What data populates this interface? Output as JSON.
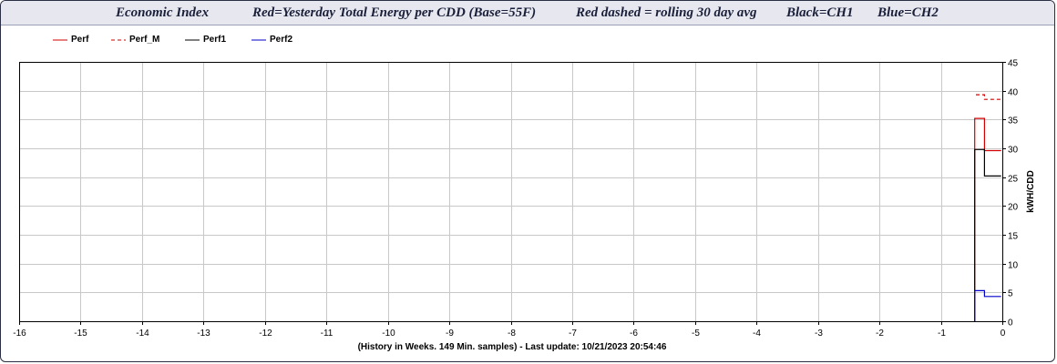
{
  "header": {
    "part1": "Economic Index",
    "part2": "Red=Yesterday Total Energy per CDD (Base=55F)",
    "part3": "Red dashed = rolling 30 day avg",
    "part4": "Black=CH1",
    "part5": "Blue=CH2"
  },
  "footer": "(History in Weeks. 149 Min. samples) - Last update: 10/21/2023 20:54:46",
  "chart_data": {
    "type": "line",
    "title": "",
    "xlabel": "(History in Weeks. 149 Min. samples) - Last update: 10/21/2023 20:54:46",
    "ylabel": "kWH/CDD",
    "xlim": [
      -16,
      0
    ],
    "ylim": [
      0,
      45
    ],
    "x_ticks": [
      -16,
      -15,
      -14,
      -13,
      -12,
      -11,
      -10,
      -9,
      -8,
      -7,
      -6,
      -5,
      -4,
      -3,
      -2,
      -1,
      0
    ],
    "y_ticks": [
      0,
      5,
      10,
      15,
      20,
      25,
      30,
      35,
      40,
      45
    ],
    "y_axis_side": "right",
    "grid": true,
    "legend_position": "top-left",
    "series": [
      {
        "name": "Perf",
        "color": "#d00000",
        "style": "solid",
        "x": [
          -0.45,
          -0.45,
          -0.43,
          -0.43,
          -0.29,
          -0.29,
          -0.02
        ],
        "y": [
          0,
          35.2,
          35.2,
          35.2,
          35.2,
          29.6,
          29.6
        ]
      },
      {
        "name": "Perf_M",
        "color": "#d00000",
        "style": "dashed",
        "x": [
          -0.43,
          -0.29,
          -0.29,
          -0.02
        ],
        "y": [
          39.3,
          39.3,
          38.5,
          38.5
        ]
      },
      {
        "name": "Perf1",
        "color": "#000000",
        "style": "solid",
        "x": [
          -0.45,
          -0.45,
          -0.29,
          -0.29,
          -0.02
        ],
        "y": [
          0,
          29.8,
          29.8,
          25.2,
          25.2
        ]
      },
      {
        "name": "Perf2",
        "color": "#0000c8",
        "style": "solid",
        "x": [
          -0.45,
          -0.45,
          -0.29,
          -0.29,
          -0.02
        ],
        "y": [
          0,
          5.3,
          5.3,
          4.3,
          4.3
        ]
      }
    ]
  }
}
